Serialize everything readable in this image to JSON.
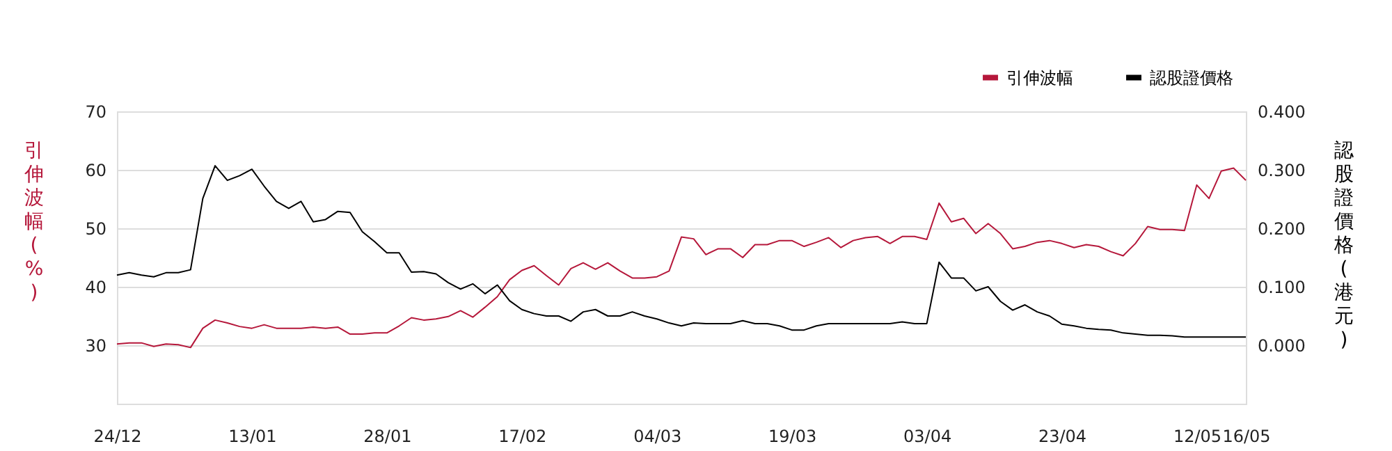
{
  "chart_data": {
    "type": "line",
    "categories": [
      "24/12",
      null,
      null,
      null,
      null,
      null,
      null,
      null,
      null,
      null,
      null,
      "13/01",
      null,
      null,
      null,
      null,
      null,
      null,
      null,
      null,
      null,
      null,
      "28/01",
      null,
      null,
      null,
      null,
      null,
      null,
      null,
      null,
      null,
      null,
      "17/02",
      null,
      null,
      null,
      null,
      null,
      null,
      null,
      null,
      null,
      null,
      "04/03",
      null,
      null,
      null,
      null,
      null,
      null,
      null,
      null,
      null,
      null,
      "19/03",
      null,
      null,
      null,
      null,
      null,
      null,
      null,
      null,
      null,
      null,
      "03/04",
      null,
      null,
      null,
      null,
      null,
      null,
      null,
      null,
      null,
      null,
      "23/04",
      null,
      null,
      null,
      null,
      null,
      null,
      null,
      null,
      null,
      null,
      "12/05",
      null,
      null,
      null,
      "16/05"
    ],
    "series": [
      {
        "name": "引伸波幅",
        "color": "#b5173a",
        "values": [
          30.2,
          30.4,
          30.4,
          29.8,
          30.2,
          30.1,
          29.6,
          32.9,
          34.3,
          33.8,
          33.2,
          32.9,
          33.5,
          32.9,
          32.9,
          32.9,
          33.1,
          32.9,
          33.1,
          31.9,
          31.9,
          32.1,
          32.1,
          33.3,
          34.7,
          34.3,
          34.5,
          34.9,
          35.9,
          34.8,
          36.5,
          38.3,
          41.2,
          42.8,
          43.6,
          41.9,
          40.3,
          43.1,
          44.1,
          43.0,
          44.1,
          42.7,
          41.5,
          41.5,
          41.7,
          42.7,
          48.5,
          48.2,
          45.5,
          46.5,
          46.5,
          45.0,
          47.2,
          47.2,
          47.9,
          47.9,
          46.9,
          47.6,
          48.4,
          46.7,
          47.9,
          48.4,
          48.6,
          47.4,
          48.6,
          48.6,
          48.1,
          54.3,
          51.1,
          51.7,
          49.1,
          50.8,
          49.1,
          46.5,
          46.9,
          47.6,
          47.9,
          47.4,
          46.7,
          47.2,
          46.9,
          46.0,
          45.3,
          47.4,
          50.3,
          49.8,
          49.8,
          49.6,
          57.4,
          55.1,
          59.8,
          60.3,
          58.2
        ]
      },
      {
        "name": "認股證價格",
        "color": "#000000",
        "axis": "y2",
        "values": [
          0.12,
          0.124,
          0.12,
          0.117,
          0.124,
          0.124,
          0.129,
          0.251,
          0.307,
          0.282,
          0.29,
          0.301,
          0.272,
          0.246,
          0.234,
          0.246,
          0.211,
          0.215,
          0.229,
          0.227,
          0.194,
          0.177,
          0.158,
          0.158,
          0.125,
          0.126,
          0.122,
          0.107,
          0.096,
          0.105,
          0.088,
          0.103,
          0.076,
          0.061,
          0.054,
          0.05,
          0.05,
          0.041,
          0.057,
          0.061,
          0.05,
          0.05,
          0.057,
          0.05,
          0.045,
          0.038,
          0.033,
          0.038,
          0.037,
          0.037,
          0.037,
          0.042,
          0.037,
          0.037,
          0.033,
          0.026,
          0.026,
          0.033,
          0.037,
          0.037,
          0.037,
          0.037,
          0.037,
          0.037,
          0.04,
          0.037,
          0.037,
          0.142,
          0.115,
          0.115,
          0.093,
          0.1,
          0.075,
          0.06,
          0.069,
          0.057,
          0.05,
          0.036,
          0.033,
          0.029,
          0.027,
          0.026,
          0.021,
          0.019,
          0.017,
          0.017,
          0.016,
          0.014,
          0.014,
          0.014,
          0.014,
          0.014,
          0.014
        ]
      }
    ],
    "ylabel": "引伸波幅(%)",
    "y2label": "認股證價格(港元)",
    "ylim": [
      20,
      70
    ],
    "yticks": [
      30,
      40,
      50,
      60,
      70
    ],
    "y2lim": [
      -0.1,
      0.4
    ],
    "y2ticks": [
      {
        "value": 0,
        "label": "0.000"
      },
      {
        "value": 0.1,
        "label": "0.100"
      },
      {
        "value": 0.2,
        "label": "0.200"
      },
      {
        "value": 0.3,
        "label": "0.300"
      },
      {
        "value": 0.4,
        "label": "0.400"
      }
    ],
    "grid": "y",
    "legend": "top right",
    "line_style": "solid",
    "marker": "none"
  }
}
